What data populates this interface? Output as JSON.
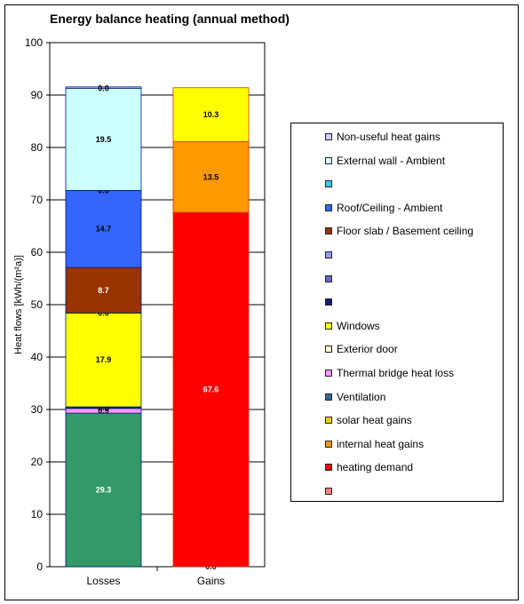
{
  "chart_data": {
    "type": "bar",
    "stacked": true,
    "title": "Energy balance heating (annual method)",
    "xlabel": "",
    "ylabel": "Heat flows [kWh/(m²a)]",
    "ylim": [
      0,
      100
    ],
    "y_ticks": [
      "0",
      "10",
      "20",
      "30",
      "40",
      "50",
      "60",
      "70",
      "80",
      "90",
      "100"
    ],
    "grid": true,
    "legend_position": "right",
    "categories": [
      "Losses",
      "Gains"
    ],
    "stacks": [
      {
        "category": "Losses",
        "segments": [
          {
            "value": 29.3,
            "label": "29.3",
            "color": "#339966",
            "text_color": "#ffffff"
          },
          {
            "value": 0.9,
            "label": "0.9",
            "color": "#ff99ff",
            "text_color": "#000000"
          },
          {
            "value": 0.3,
            "label": "0.3",
            "color": "#0a1f8f",
            "text_color": "#000000"
          },
          {
            "value": 17.9,
            "label": "17.9",
            "color": "#ffff00",
            "text_color": "#000000"
          },
          {
            "value": 0.0,
            "label": "0.0",
            "color": "#ffffcc",
            "text_color": "#000000"
          },
          {
            "value": 8.7,
            "label": "8.7",
            "color": "#993300",
            "text_color": "#ffffff"
          },
          {
            "value": 14.7,
            "label": "14.7",
            "color": "#3366ff",
            "text_color": "#000000"
          },
          {
            "value": 0.0,
            "label": "0.0",
            "color": "#33ccff",
            "text_color": "#000000"
          },
          {
            "value": 19.5,
            "label": "19.5",
            "color": "#ccffff",
            "text_color": "#000000"
          },
          {
            "value": 0.0,
            "label": "0.0",
            "color": "#ccccff",
            "text_color": "#000000"
          }
        ]
      },
      {
        "category": "Gains",
        "segments": [
          {
            "value": 0.0,
            "label": "0.0",
            "color": "#ff8080",
            "text_color": "#000000"
          },
          {
            "value": 67.6,
            "label": "67.6",
            "color": "#ff0000",
            "text_color": "#ffffff"
          },
          {
            "value": 13.5,
            "label": "13.5",
            "color": "#ff9900",
            "text_color": "#000000"
          },
          {
            "value": 10.3,
            "label": "10.3",
            "color": "#ffff00",
            "text_color": "#000000"
          }
        ]
      }
    ],
    "legend": [
      {
        "label": "Non-useful heat gains",
        "color": "#ccccff"
      },
      {
        "label": "External wall - Ambient",
        "color": "#ccffff"
      },
      {
        "label": "",
        "color": "#33ccff"
      },
      {
        "label": "Roof/Ceiling - Ambient",
        "color": "#3366ff"
      },
      {
        "label": "Floor slab / Basement ceiling",
        "color": "#993300"
      },
      {
        "label": "",
        "color": "#9999ff"
      },
      {
        "label": "",
        "color": "#6666cc"
      },
      {
        "label": "",
        "color": "#1a1a80"
      },
      {
        "label": "Windows",
        "color": "#ffff00"
      },
      {
        "label": "Exterior door",
        "color": "#ffffcc"
      },
      {
        "label": "Thermal bridge heat loss",
        "color": "#ff99ff"
      },
      {
        "label": "Ventilation",
        "color": "#336699"
      },
      {
        "label": "solar heat gains",
        "color": "#ffcc00"
      },
      {
        "label": "internal heat gains",
        "color": "#ff9900"
      },
      {
        "label": "heating demand",
        "color": "#ff0000"
      },
      {
        "label": "",
        "color": "#ff8080"
      }
    ]
  }
}
